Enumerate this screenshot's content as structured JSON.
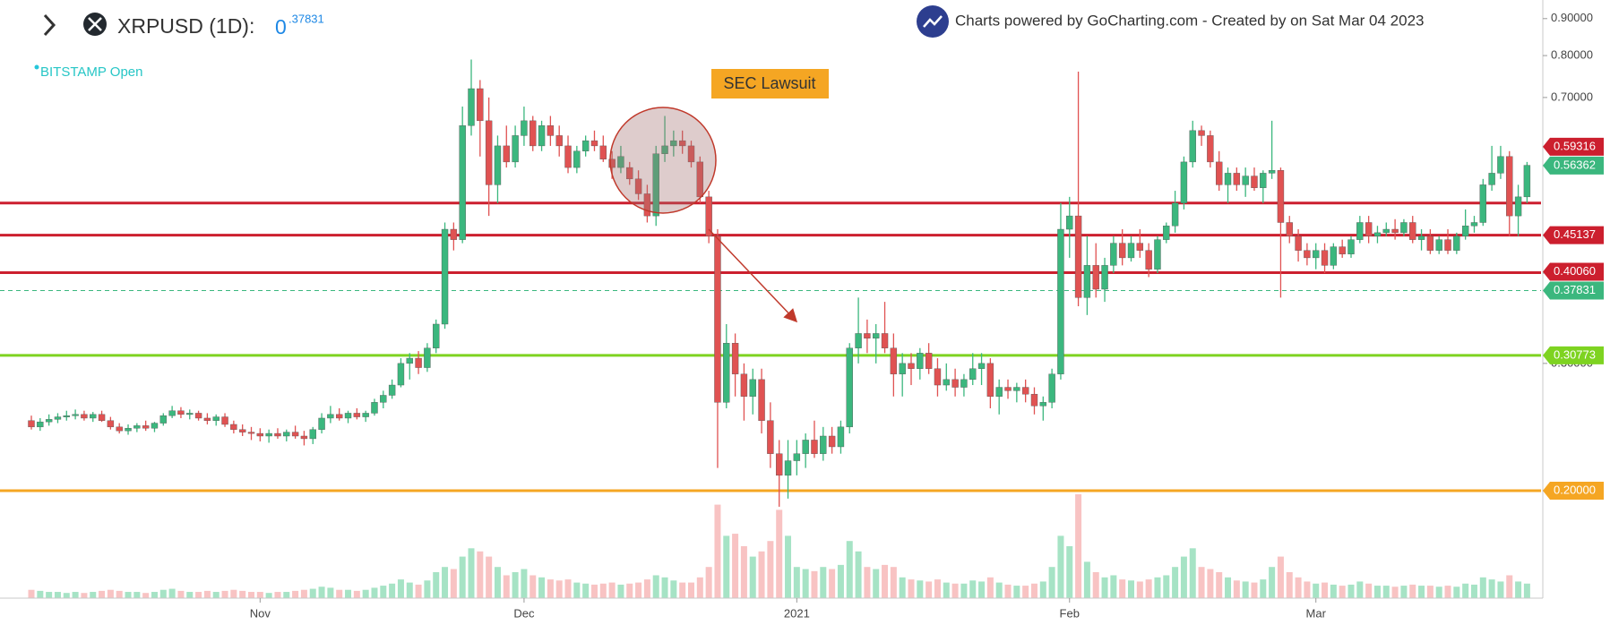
{
  "header": {
    "symbol": "XRPUSD (1D):",
    "price_whole": "0",
    "price_fraction": ".37831",
    "exchange": "BITSTAMP Open",
    "credit": "Charts powered by GoCharting.com - Created by  on Sat Mar 04 2023"
  },
  "chart_data": {
    "type": "candlestick",
    "log_scale": true,
    "up_color": "#3bb77e",
    "down_color": "#e05252",
    "up_volume_color": "#a6e3c5",
    "down_volume_color": "#f8c3c3",
    "ylim": [
      0.142,
      0.955
    ],
    "yticks": [
      {
        "value": 0.9,
        "label": "0.90000"
      },
      {
        "value": 0.8,
        "label": "0.80000"
      },
      {
        "value": 0.7,
        "label": "0.70000"
      },
      {
        "value": 0.4,
        "label": "0.40000"
      },
      {
        "value": 0.3,
        "label": "0.30000"
      },
      {
        "value": 0.2,
        "label": "0.20000"
      }
    ],
    "vlim": [
      0,
      100
    ],
    "annotation": "SEC Lawsuit",
    "levels": [
      {
        "value": 0.5,
        "color": "#cc1f2e"
      },
      {
        "value": 0.45137,
        "color": "#cc1f2e"
      },
      {
        "value": 0.4006,
        "color": "#cc1f2e"
      },
      {
        "value": 0.30773,
        "color": "#7ed321"
      },
      {
        "value": 0.2,
        "color": "#f5a623"
      }
    ],
    "last_price": 0.37831,
    "last_price_color": "#3bb77e",
    "price_labels": [
      {
        "value": 0.59316,
        "label": "0.59316",
        "color": "#cc1f2e"
      },
      {
        "value": 0.56362,
        "label": "0.56362",
        "color": "#3bb77e"
      },
      {
        "value": 0.45137,
        "label": "0.45137",
        "color": "#cc1f2e"
      },
      {
        "value": 0.4006,
        "label": "0.40060",
        "color": "#cc1f2e"
      },
      {
        "value": 0.37831,
        "label": "0.37831",
        "color": "#3bb77e"
      },
      {
        "value": 0.30773,
        "label": "0.30773",
        "color": "#7ed321"
      },
      {
        "value": 0.2,
        "label": "0.20000",
        "color": "#f5a623"
      }
    ],
    "categories": [
      null,
      null,
      null,
      null,
      null,
      null,
      null,
      null,
      null,
      null,
      null,
      null,
      null,
      null,
      null,
      null,
      null,
      null,
      null,
      null,
      null,
      null,
      null,
      null,
      null,
      null,
      "Nov",
      null,
      null,
      null,
      null,
      null,
      null,
      null,
      null,
      null,
      null,
      null,
      null,
      null,
      null,
      null,
      null,
      null,
      null,
      null,
      null,
      null,
      null,
      null,
      null,
      null,
      null,
      null,
      null,
      null,
      "Dec",
      null,
      null,
      null,
      null,
      null,
      null,
      null,
      null,
      null,
      null,
      null,
      null,
      null,
      null,
      null,
      null,
      null,
      null,
      null,
      null,
      null,
      null,
      null,
      null,
      null,
      null,
      null,
      null,
      null,
      null,
      "2021",
      null,
      null,
      null,
      null,
      null,
      null,
      null,
      null,
      null,
      null,
      null,
      null,
      null,
      null,
      null,
      null,
      null,
      null,
      null,
      null,
      null,
      null,
      null,
      null,
      null,
      null,
      null,
      null,
      null,
      null,
      "Feb",
      null,
      null,
      null,
      null,
      null,
      null,
      null,
      null,
      null,
      null,
      null,
      null,
      null,
      null,
      null,
      null,
      null,
      null,
      null,
      null,
      null,
      null,
      null,
      null,
      null,
      null,
      null,
      "Mar",
      null,
      null,
      null,
      null,
      null,
      null,
      null,
      null,
      null,
      null,
      null,
      null,
      null,
      null,
      null,
      null,
      null,
      null,
      null,
      null,
      null,
      null,
      null,
      null
    ],
    "ohlc": [
      [
        0.25,
        0.254,
        0.243,
        0.245
      ],
      [
        0.245,
        0.252,
        0.242,
        0.249
      ],
      [
        0.249,
        0.255,
        0.246,
        0.251
      ],
      [
        0.251,
        0.256,
        0.248,
        0.253
      ],
      [
        0.253,
        0.258,
        0.25,
        0.254
      ],
      [
        0.254,
        0.259,
        0.251,
        0.255
      ],
      [
        0.255,
        0.258,
        0.25,
        0.252
      ],
      [
        0.252,
        0.257,
        0.249,
        0.255
      ],
      [
        0.255,
        0.258,
        0.249,
        0.25
      ],
      [
        0.25,
        0.253,
        0.243,
        0.245
      ],
      [
        0.245,
        0.248,
        0.24,
        0.242
      ],
      [
        0.242,
        0.247,
        0.239,
        0.244
      ],
      [
        0.244,
        0.248,
        0.241,
        0.246
      ],
      [
        0.246,
        0.25,
        0.242,
        0.244
      ],
      [
        0.244,
        0.249,
        0.241,
        0.248
      ],
      [
        0.248,
        0.256,
        0.246,
        0.254
      ],
      [
        0.254,
        0.262,
        0.252,
        0.258
      ],
      [
        0.258,
        0.261,
        0.252,
        0.255
      ],
      [
        0.255,
        0.259,
        0.251,
        0.256
      ],
      [
        0.256,
        0.258,
        0.25,
        0.252
      ],
      [
        0.252,
        0.256,
        0.247,
        0.25
      ],
      [
        0.25,
        0.255,
        0.246,
        0.253
      ],
      [
        0.253,
        0.256,
        0.245,
        0.247
      ],
      [
        0.247,
        0.25,
        0.24,
        0.243
      ],
      [
        0.243,
        0.247,
        0.238,
        0.241
      ],
      [
        0.241,
        0.245,
        0.235,
        0.24
      ],
      [
        0.24,
        0.244,
        0.234,
        0.238
      ],
      [
        0.238,
        0.243,
        0.233,
        0.24
      ],
      [
        0.24,
        0.244,
        0.236,
        0.238
      ],
      [
        0.238,
        0.243,
        0.234,
        0.241
      ],
      [
        0.241,
        0.246,
        0.236,
        0.238
      ],
      [
        0.238,
        0.242,
        0.231,
        0.236
      ],
      [
        0.236,
        0.245,
        0.232,
        0.243
      ],
      [
        0.243,
        0.256,
        0.24,
        0.252
      ],
      [
        0.252,
        0.262,
        0.248,
        0.255
      ],
      [
        0.255,
        0.26,
        0.25,
        0.252
      ],
      [
        0.252,
        0.258,
        0.248,
        0.256
      ],
      [
        0.256,
        0.26,
        0.251,
        0.253
      ],
      [
        0.253,
        0.258,
        0.249,
        0.256
      ],
      [
        0.256,
        0.268,
        0.254,
        0.265
      ],
      [
        0.265,
        0.275,
        0.26,
        0.271
      ],
      [
        0.271,
        0.285,
        0.268,
        0.28
      ],
      [
        0.28,
        0.305,
        0.278,
        0.3
      ],
      [
        0.3,
        0.31,
        0.285,
        0.305
      ],
      [
        0.305,
        0.312,
        0.29,
        0.296
      ],
      [
        0.296,
        0.32,
        0.292,
        0.315
      ],
      [
        0.315,
        0.345,
        0.31,
        0.34
      ],
      [
        0.34,
        0.47,
        0.335,
        0.46
      ],
      [
        0.46,
        0.47,
        0.43,
        0.445
      ],
      [
        0.445,
        0.68,
        0.44,
        0.64
      ],
      [
        0.64,
        0.79,
        0.62,
        0.72
      ],
      [
        0.72,
        0.74,
        0.58,
        0.65
      ],
      [
        0.65,
        0.7,
        0.48,
        0.53
      ],
      [
        0.53,
        0.62,
        0.5,
        0.6
      ],
      [
        0.6,
        0.64,
        0.56,
        0.57
      ],
      [
        0.57,
        0.64,
        0.56,
        0.62
      ],
      [
        0.62,
        0.68,
        0.6,
        0.65
      ],
      [
        0.65,
        0.66,
        0.59,
        0.6
      ],
      [
        0.6,
        0.65,
        0.59,
        0.64
      ],
      [
        0.64,
        0.66,
        0.6,
        0.62
      ],
      [
        0.62,
        0.64,
        0.58,
        0.6
      ],
      [
        0.6,
        0.62,
        0.55,
        0.56
      ],
      [
        0.56,
        0.6,
        0.55,
        0.59
      ],
      [
        0.59,
        0.62,
        0.58,
        0.61
      ],
      [
        0.61,
        0.63,
        0.59,
        0.6
      ],
      [
        0.6,
        0.62,
        0.57,
        0.575
      ],
      [
        0.575,
        0.59,
        0.54,
        0.56
      ],
      [
        0.56,
        0.6,
        0.55,
        0.58
      ],
      [
        0.56,
        0.57,
        0.53,
        0.54
      ],
      [
        0.54,
        0.555,
        0.505,
        0.515
      ],
      [
        0.515,
        0.53,
        0.47,
        0.48
      ],
      [
        0.48,
        0.6,
        0.465,
        0.585
      ],
      [
        0.585,
        0.66,
        0.57,
        0.6
      ],
      [
        0.6,
        0.63,
        0.58,
        0.61
      ],
      [
        0.61,
        0.63,
        0.585,
        0.6
      ],
      [
        0.6,
        0.61,
        0.56,
        0.57
      ],
      [
        0.57,
        0.58,
        0.5,
        0.51
      ],
      [
        0.51,
        0.52,
        0.44,
        0.45
      ],
      [
        0.45,
        0.46,
        0.215,
        0.265
      ],
      [
        0.265,
        0.34,
        0.26,
        0.32
      ],
      [
        0.32,
        0.33,
        0.27,
        0.29
      ],
      [
        0.29,
        0.3,
        0.25,
        0.27
      ],
      [
        0.27,
        0.295,
        0.255,
        0.285
      ],
      [
        0.285,
        0.295,
        0.24,
        0.25
      ],
      [
        0.25,
        0.265,
        0.215,
        0.225
      ],
      [
        0.225,
        0.235,
        0.19,
        0.21
      ],
      [
        0.21,
        0.235,
        0.195,
        0.22
      ],
      [
        0.22,
        0.235,
        0.21,
        0.225
      ],
      [
        0.225,
        0.24,
        0.215,
        0.235
      ],
      [
        0.235,
        0.25,
        0.222,
        0.225
      ],
      [
        0.225,
        0.245,
        0.22,
        0.238
      ],
      [
        0.238,
        0.245,
        0.225,
        0.23
      ],
      [
        0.23,
        0.25,
        0.225,
        0.245
      ],
      [
        0.245,
        0.32,
        0.24,
        0.315
      ],
      [
        0.315,
        0.37,
        0.3,
        0.33
      ],
      [
        0.33,
        0.345,
        0.31,
        0.325
      ],
      [
        0.325,
        0.34,
        0.3,
        0.33
      ],
      [
        0.33,
        0.365,
        0.31,
        0.315
      ],
      [
        0.315,
        0.33,
        0.27,
        0.29
      ],
      [
        0.29,
        0.31,
        0.27,
        0.3
      ],
      [
        0.3,
        0.31,
        0.28,
        0.295
      ],
      [
        0.295,
        0.315,
        0.285,
        0.31
      ],
      [
        0.31,
        0.32,
        0.29,
        0.295
      ],
      [
        0.295,
        0.305,
        0.27,
        0.28
      ],
      [
        0.28,
        0.3,
        0.275,
        0.285
      ],
      [
        0.285,
        0.295,
        0.27,
        0.278
      ],
      [
        0.278,
        0.29,
        0.27,
        0.285
      ],
      [
        0.285,
        0.31,
        0.28,
        0.295
      ],
      [
        0.295,
        0.31,
        0.28,
        0.3
      ],
      [
        0.3,
        0.305,
        0.26,
        0.27
      ],
      [
        0.27,
        0.285,
        0.255,
        0.278
      ],
      [
        0.278,
        0.285,
        0.268,
        0.275
      ],
      [
        0.275,
        0.282,
        0.265,
        0.278
      ],
      [
        0.278,
        0.285,
        0.265,
        0.272
      ],
      [
        0.272,
        0.278,
        0.255,
        0.262
      ],
      [
        0.262,
        0.27,
        0.25,
        0.265
      ],
      [
        0.265,
        0.295,
        0.26,
        0.29
      ],
      [
        0.29,
        0.5,
        0.285,
        0.46
      ],
      [
        0.46,
        0.51,
        0.42,
        0.48
      ],
      [
        0.48,
        0.76,
        0.36,
        0.37
      ],
      [
        0.37,
        0.45,
        0.35,
        0.41
      ],
      [
        0.41,
        0.44,
        0.37,
        0.38
      ],
      [
        0.38,
        0.42,
        0.365,
        0.41
      ],
      [
        0.41,
        0.45,
        0.4,
        0.44
      ],
      [
        0.44,
        0.46,
        0.41,
        0.42
      ],
      [
        0.42,
        0.45,
        0.415,
        0.44
      ],
      [
        0.44,
        0.46,
        0.42,
        0.43
      ],
      [
        0.43,
        0.44,
        0.395,
        0.405
      ],
      [
        0.405,
        0.45,
        0.4,
        0.445
      ],
      [
        0.445,
        0.47,
        0.44,
        0.465
      ],
      [
        0.465,
        0.52,
        0.455,
        0.5
      ],
      [
        0.5,
        0.58,
        0.49,
        0.57
      ],
      [
        0.57,
        0.65,
        0.56,
        0.63
      ],
      [
        0.63,
        0.64,
        0.6,
        0.62
      ],
      [
        0.62,
        0.63,
        0.56,
        0.57
      ],
      [
        0.57,
        0.59,
        0.52,
        0.53
      ],
      [
        0.53,
        0.56,
        0.5,
        0.55
      ],
      [
        0.55,
        0.56,
        0.52,
        0.53
      ],
      [
        0.53,
        0.56,
        0.51,
        0.545
      ],
      [
        0.545,
        0.56,
        0.52,
        0.525
      ],
      [
        0.525,
        0.555,
        0.5,
        0.55
      ],
      [
        0.55,
        0.65,
        0.54,
        0.555
      ],
      [
        0.555,
        0.56,
        0.37,
        0.47
      ],
      [
        0.47,
        0.48,
        0.44,
        0.45
      ],
      [
        0.45,
        0.46,
        0.415,
        0.43
      ],
      [
        0.43,
        0.44,
        0.41,
        0.42
      ],
      [
        0.42,
        0.44,
        0.405,
        0.43
      ],
      [
        0.43,
        0.44,
        0.4,
        0.41
      ],
      [
        0.41,
        0.44,
        0.405,
        0.435
      ],
      [
        0.435,
        0.445,
        0.42,
        0.425
      ],
      [
        0.425,
        0.45,
        0.42,
        0.445
      ],
      [
        0.445,
        0.48,
        0.44,
        0.47
      ],
      [
        0.47,
        0.48,
        0.44,
        0.45
      ],
      [
        0.45,
        0.465,
        0.44,
        0.455
      ],
      [
        0.455,
        0.47,
        0.45,
        0.46
      ],
      [
        0.46,
        0.475,
        0.445,
        0.455
      ],
      [
        0.455,
        0.475,
        0.45,
        0.47
      ],
      [
        0.47,
        0.48,
        0.44,
        0.445
      ],
      [
        0.445,
        0.46,
        0.43,
        0.45
      ],
      [
        0.45,
        0.46,
        0.425,
        0.43
      ],
      [
        0.43,
        0.45,
        0.425,
        0.445
      ],
      [
        0.445,
        0.46,
        0.425,
        0.43
      ],
      [
        0.43,
        0.455,
        0.425,
        0.45
      ],
      [
        0.45,
        0.49,
        0.445,
        0.465
      ],
      [
        0.465,
        0.48,
        0.455,
        0.47
      ],
      [
        0.47,
        0.54,
        0.465,
        0.53
      ],
      [
        0.53,
        0.6,
        0.52,
        0.55
      ],
      [
        0.55,
        0.6,
        0.54,
        0.58
      ],
      [
        0.58,
        0.59,
        0.45,
        0.48
      ],
      [
        0.48,
        0.53,
        0.45,
        0.51
      ],
      [
        0.51,
        0.57,
        0.5,
        0.564
      ]
    ],
    "volume": [
      8,
      7,
      6,
      6,
      5,
      6,
      5,
      6,
      7,
      8,
      7,
      6,
      6,
      5,
      6,
      8,
      9,
      7,
      6,
      6,
      7,
      6,
      7,
      8,
      7,
      6,
      6,
      5,
      6,
      6,
      7,
      8,
      9,
      11,
      10,
      8,
      8,
      7,
      8,
      10,
      12,
      14,
      18,
      15,
      13,
      17,
      25,
      30,
      28,
      40,
      48,
      45,
      40,
      30,
      22,
      25,
      28,
      22,
      20,
      18,
      17,
      18,
      15,
      14,
      13,
      14,
      15,
      13,
      14,
      15,
      18,
      22,
      20,
      17,
      15,
      15,
      20,
      30,
      90,
      60,
      62,
      50,
      40,
      45,
      55,
      85,
      60,
      30,
      28,
      26,
      30,
      28,
      32,
      55,
      45,
      30,
      28,
      32,
      30,
      20,
      18,
      17,
      16,
      18,
      15,
      14,
      14,
      17,
      16,
      20,
      15,
      13,
      12,
      12,
      14,
      16,
      30,
      60,
      50,
      100,
      35,
      25,
      20,
      22,
      18,
      17,
      16,
      18,
      20,
      22,
      30,
      40,
      48,
      30,
      28,
      25,
      20,
      17,
      16,
      15,
      18,
      30,
      40,
      25,
      20,
      16,
      14,
      15,
      13,
      12,
      13,
      16,
      14,
      12,
      12,
      11,
      12,
      13,
      12,
      12,
      11,
      12,
      11,
      14,
      13,
      20,
      18,
      16,
      22,
      16,
      14
    ]
  }
}
